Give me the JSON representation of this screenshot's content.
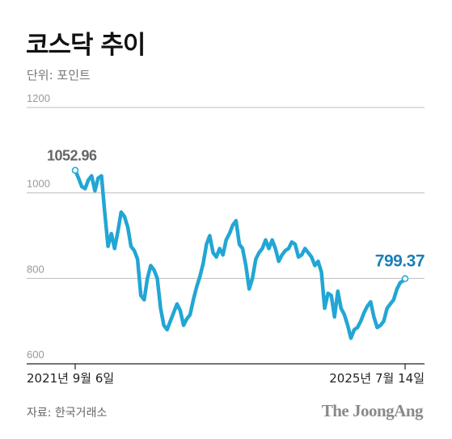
{
  "title": "코스닥 추이",
  "unit": "단위: 포인트",
  "source": "자료: 한국거래소",
  "brand": "The JoongAng",
  "colors": {
    "line": "#22a6d4",
    "end_label": "#1d7fb8",
    "start_label": "#666666",
    "grid": "#bdbdbd",
    "tick": "#999999"
  },
  "chart_data": {
    "type": "line",
    "title": "코스닥 추이",
    "ylabel": "단위: 포인트",
    "ylim": [
      600,
      1200
    ],
    "y_ticks": [
      600,
      800,
      1000,
      1200
    ],
    "grid": true,
    "x_labels": {
      "start": "2021년 9월 6일",
      "end": "2025년 7월 14일"
    },
    "x_range": [
      "2021-09-06",
      "2025-07-14"
    ],
    "annotations": {
      "start_value": "1052.96",
      "end_value": "799.37"
    },
    "series": [
      {
        "x": [
          "2021-09-06",
          "2021-09-20",
          "2021-10-04",
          "2021-10-18",
          "2021-11-01",
          "2021-11-15",
          "2021-11-29",
          "2021-12-13",
          "2021-12-27",
          "2022-01-10",
          "2022-01-24",
          "2022-02-07",
          "2022-02-21",
          "2022-03-07",
          "2022-03-21",
          "2022-04-04",
          "2022-04-18",
          "2022-05-02",
          "2022-05-16",
          "2022-05-30",
          "2022-06-13",
          "2022-06-27",
          "2022-07-11",
          "2022-07-25",
          "2022-08-08",
          "2022-08-22",
          "2022-09-05",
          "2022-09-19",
          "2022-10-03",
          "2022-10-17",
          "2022-10-31",
          "2022-11-14",
          "2022-11-28",
          "2022-12-12",
          "2022-12-26",
          "2023-01-09",
          "2023-01-23",
          "2023-02-06",
          "2023-02-20",
          "2023-03-06",
          "2023-03-20",
          "2023-04-03",
          "2023-04-17",
          "2023-05-01",
          "2023-05-15",
          "2023-05-29",
          "2023-06-12",
          "2023-06-26",
          "2023-07-10",
          "2023-07-24",
          "2023-08-07",
          "2023-08-21",
          "2023-09-04",
          "2023-09-18",
          "2023-10-02",
          "2023-10-16",
          "2023-10-30",
          "2023-11-13",
          "2023-11-27",
          "2023-12-11",
          "2023-12-25",
          "2024-01-08",
          "2024-01-22",
          "2024-02-05",
          "2024-02-19",
          "2024-03-04",
          "2024-03-18",
          "2024-04-01",
          "2024-04-15",
          "2024-04-29",
          "2024-05-13",
          "2024-05-27",
          "2024-06-10",
          "2024-06-24",
          "2024-07-08",
          "2024-07-22",
          "2024-08-05",
          "2024-08-19",
          "2024-09-02",
          "2024-09-16",
          "2024-09-30",
          "2024-10-14",
          "2024-10-28",
          "2024-11-11",
          "2024-11-25",
          "2024-12-09",
          "2024-12-23",
          "2025-01-06",
          "2025-01-20",
          "2025-02-03",
          "2025-02-17",
          "2025-03-03",
          "2025-03-17",
          "2025-03-31",
          "2025-04-14",
          "2025-04-28",
          "2025-05-12",
          "2025-05-26",
          "2025-06-09",
          "2025-06-23",
          "2025-07-07",
          "2025-07-14"
        ],
        "y": [
          1052.96,
          1035,
          1015,
          1010,
          1030,
          1040,
          1005,
          1035,
          1040,
          955,
          875,
          905,
          870,
          910,
          955,
          945,
          920,
          875,
          865,
          845,
          760,
          750,
          800,
          830,
          820,
          800,
          730,
          690,
          680,
          700,
          720,
          740,
          725,
          690,
          705,
          715,
          750,
          780,
          805,
          835,
          880,
          900,
          860,
          850,
          870,
          855,
          890,
          905,
          925,
          935,
          880,
          870,
          830,
          775,
          800,
          845,
          860,
          870,
          890,
          870,
          890,
          870,
          840,
          855,
          865,
          870,
          885,
          880,
          850,
          855,
          870,
          860,
          850,
          830,
          840,
          815,
          730,
          765,
          760,
          710,
          770,
          730,
          715,
          690,
          660,
          680,
          685,
          700,
          720,
          735,
          745,
          710,
          685,
          690,
          700,
          730,
          740,
          750,
          775,
          790,
          795,
          799.37
        ]
      }
    ]
  }
}
